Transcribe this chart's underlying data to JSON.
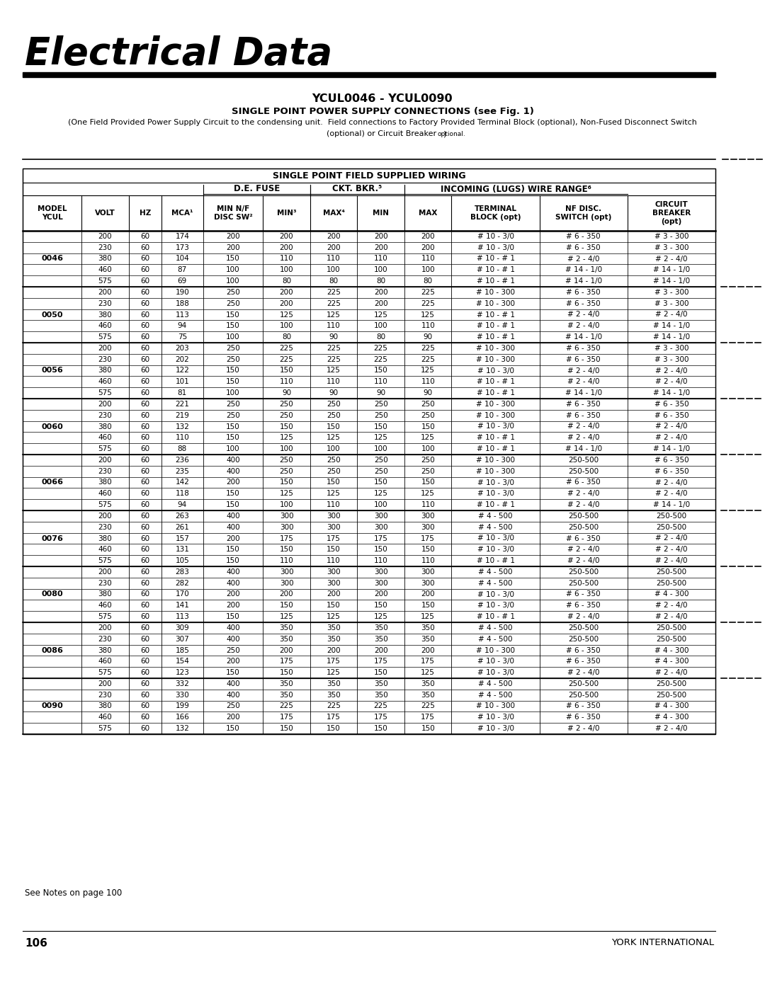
{
  "title_main": "Electrical Data",
  "subtitle1": "YCUL0046 - YCUL0090",
  "subtitle2": "SINGLE POINT POWER SUPPLY CONNECTIONS (see Fig. 1)",
  "subtitle3": "(One Field Provided Power Supply Circuit to the condensing unit.  Field connections to Factory Provided Terminal Block (optional), Non-Fused Disconnect Switch",
  "subtitle4": "(optional) or Circuit Breaker",
  "subtitle4b": " optional.",
  "subtitle4c": ")",
  "table_title": "SINGLE POINT FIELD SUPPLIED WIRING",
  "col_group1": "D.E. FUSE",
  "col_group2": "CKT. BKR.⁵",
  "col_group3": "INCOMING (LUGS) WIRE RANGE⁶",
  "col_labels": [
    "MODEL\nYCUL",
    "VOLT",
    "HZ",
    "MCA¹",
    "MIN N/F\nDISC SW²",
    "MIN³",
    "MAX⁴",
    "MIN",
    "MAX",
    "TERMINAL\nBLOCK (opt)",
    "NF DISC.\nSWITCH (opt)",
    "CIRCUIT\nBREAKER\n(opt)"
  ],
  "footer_left": "See Notes on page 100",
  "footer_page": "106",
  "footer_right": "YORK INTERNATIONAL",
  "models": [
    {
      "model": "0046",
      "rows": [
        [
          200,
          60,
          174,
          200,
          200,
          200,
          200,
          200,
          "# 10 - 3/0",
          "# 6 - 350",
          "# 3 - 300"
        ],
        [
          230,
          60,
          173,
          200,
          200,
          200,
          200,
          200,
          "# 10 - 3/0",
          "# 6 - 350",
          "# 3 - 300"
        ],
        [
          380,
          60,
          104,
          150,
          110,
          110,
          110,
          110,
          "# 10 - # 1",
          "# 2 - 4/0",
          "# 2 - 4/0"
        ],
        [
          460,
          60,
          87,
          100,
          100,
          100,
          100,
          100,
          "# 10 - # 1",
          "# 14 - 1/0",
          "# 14 - 1/0"
        ],
        [
          575,
          60,
          69,
          100,
          80,
          80,
          80,
          80,
          "# 10 - # 1",
          "# 14 - 1/0",
          "# 14 - 1/0"
        ]
      ]
    },
    {
      "model": "0050",
      "rows": [
        [
          200,
          60,
          190,
          250,
          200,
          225,
          200,
          225,
          "# 10 - 300",
          "# 6 - 350",
          "# 3 - 300"
        ],
        [
          230,
          60,
          188,
          250,
          200,
          225,
          200,
          225,
          "# 10 - 300",
          "# 6 - 350",
          "# 3 - 300"
        ],
        [
          380,
          60,
          113,
          150,
          125,
          125,
          125,
          125,
          "# 10 - # 1",
          "# 2 - 4/0",
          "# 2 - 4/0"
        ],
        [
          460,
          60,
          94,
          150,
          100,
          110,
          100,
          110,
          "# 10 - # 1",
          "# 2 - 4/0",
          "# 14 - 1/0"
        ],
        [
          575,
          60,
          75,
          100,
          80,
          90,
          80,
          90,
          "# 10 - # 1",
          "# 14 - 1/0",
          "# 14 - 1/0"
        ]
      ]
    },
    {
      "model": "0056",
      "rows": [
        [
          200,
          60,
          203,
          250,
          225,
          225,
          225,
          225,
          "# 10 - 300",
          "# 6 - 350",
          "# 3 - 300"
        ],
        [
          230,
          60,
          202,
          250,
          225,
          225,
          225,
          225,
          "# 10 - 300",
          "# 6 - 350",
          "# 3 - 300"
        ],
        [
          380,
          60,
          122,
          150,
          150,
          125,
          150,
          125,
          "# 10 - 3/0",
          "# 2 - 4/0",
          "# 2 - 4/0"
        ],
        [
          460,
          60,
          101,
          150,
          110,
          110,
          110,
          110,
          "# 10 - # 1",
          "# 2 - 4/0",
          "# 2 - 4/0"
        ],
        [
          575,
          60,
          81,
          100,
          90,
          90,
          90,
          90,
          "# 10 - # 1",
          "# 14 - 1/0",
          "# 14 - 1/0"
        ]
      ]
    },
    {
      "model": "0060",
      "rows": [
        [
          200,
          60,
          221,
          250,
          250,
          250,
          250,
          250,
          "# 10 - 300",
          "# 6 - 350",
          "# 6 - 350"
        ],
        [
          230,
          60,
          219,
          250,
          250,
          250,
          250,
          250,
          "# 10 - 300",
          "# 6 - 350",
          "# 6 - 350"
        ],
        [
          380,
          60,
          132,
          150,
          150,
          150,
          150,
          150,
          "# 10 - 3/0",
          "# 2 - 4/0",
          "# 2 - 4/0"
        ],
        [
          460,
          60,
          110,
          150,
          125,
          125,
          125,
          125,
          "# 10 - # 1",
          "# 2 - 4/0",
          "# 2 - 4/0"
        ],
        [
          575,
          60,
          88,
          100,
          100,
          100,
          100,
          100,
          "# 10 - # 1",
          "# 14 - 1/0",
          "# 14 - 1/0"
        ]
      ]
    },
    {
      "model": "0066",
      "rows": [
        [
          200,
          60,
          236,
          400,
          250,
          250,
          250,
          250,
          "# 10 - 300",
          "250-500",
          "# 6 - 350"
        ],
        [
          230,
          60,
          235,
          400,
          250,
          250,
          250,
          250,
          "# 10 - 300",
          "250-500",
          "# 6 - 350"
        ],
        [
          380,
          60,
          142,
          200,
          150,
          150,
          150,
          150,
          "# 10 - 3/0",
          "# 6 - 350",
          "# 2 - 4/0"
        ],
        [
          460,
          60,
          118,
          150,
          125,
          125,
          125,
          125,
          "# 10 - 3/0",
          "# 2 - 4/0",
          "# 2 - 4/0"
        ],
        [
          575,
          60,
          94,
          150,
          100,
          110,
          100,
          110,
          "# 10 - # 1",
          "# 2 - 4/0",
          "# 14 - 1/0"
        ]
      ]
    },
    {
      "model": "0076",
      "rows": [
        [
          200,
          60,
          263,
          400,
          300,
          300,
          300,
          300,
          "# 4 - 500",
          "250-500",
          "250-500"
        ],
        [
          230,
          60,
          261,
          400,
          300,
          300,
          300,
          300,
          "# 4 - 500",
          "250-500",
          "250-500"
        ],
        [
          380,
          60,
          157,
          200,
          175,
          175,
          175,
          175,
          "# 10 - 3/0",
          "# 6 - 350",
          "# 2 - 4/0"
        ],
        [
          460,
          60,
          131,
          150,
          150,
          150,
          150,
          150,
          "# 10 - 3/0",
          "# 2 - 4/0",
          "# 2 - 4/0"
        ],
        [
          575,
          60,
          105,
          150,
          110,
          110,
          110,
          110,
          "# 10 - # 1",
          "# 2 - 4/0",
          "# 2 - 4/0"
        ]
      ]
    },
    {
      "model": "0080",
      "rows": [
        [
          200,
          60,
          283,
          400,
          300,
          300,
          300,
          300,
          "# 4 - 500",
          "250-500",
          "250-500"
        ],
        [
          230,
          60,
          282,
          400,
          300,
          300,
          300,
          300,
          "# 4 - 500",
          "250-500",
          "250-500"
        ],
        [
          380,
          60,
          170,
          200,
          200,
          200,
          200,
          200,
          "# 10 - 3/0",
          "# 6 - 350",
          "# 4 - 300"
        ],
        [
          460,
          60,
          141,
          200,
          150,
          150,
          150,
          150,
          "# 10 - 3/0",
          "# 6 - 350",
          "# 2 - 4/0"
        ],
        [
          575,
          60,
          113,
          150,
          125,
          125,
          125,
          125,
          "# 10 - # 1",
          "# 2 - 4/0",
          "# 2 - 4/0"
        ]
      ]
    },
    {
      "model": "0086",
      "rows": [
        [
          200,
          60,
          309,
          400,
          350,
          350,
          350,
          350,
          "# 4 - 500",
          "250-500",
          "250-500"
        ],
        [
          230,
          60,
          307,
          400,
          350,
          350,
          350,
          350,
          "# 4 - 500",
          "250-500",
          "250-500"
        ],
        [
          380,
          60,
          185,
          250,
          200,
          200,
          200,
          200,
          "# 10 - 300",
          "# 6 - 350",
          "# 4 - 300"
        ],
        [
          460,
          60,
          154,
          200,
          175,
          175,
          175,
          175,
          "# 10 - 3/0",
          "# 6 - 350",
          "# 4 - 300"
        ],
        [
          575,
          60,
          123,
          150,
          150,
          125,
          150,
          125,
          "# 10 - 3/0",
          "# 2 - 4/0",
          "# 2 - 4/0"
        ]
      ]
    },
    {
      "model": "0090",
      "rows": [
        [
          200,
          60,
          332,
          400,
          350,
          350,
          350,
          350,
          "# 4 - 500",
          "250-500",
          "250-500"
        ],
        [
          230,
          60,
          330,
          400,
          350,
          350,
          350,
          350,
          "# 4 - 500",
          "250-500",
          "250-500"
        ],
        [
          380,
          60,
          199,
          250,
          225,
          225,
          225,
          225,
          "# 10 - 300",
          "# 6 - 350",
          "# 4 - 300"
        ],
        [
          460,
          60,
          166,
          200,
          175,
          175,
          175,
          175,
          "# 10 - 3/0",
          "# 6 - 350",
          "# 4 - 300"
        ],
        [
          575,
          60,
          132,
          150,
          150,
          150,
          150,
          150,
          "# 10 - 3/0",
          "# 2 - 4/0",
          "# 2 - 4/0"
        ]
      ]
    }
  ]
}
